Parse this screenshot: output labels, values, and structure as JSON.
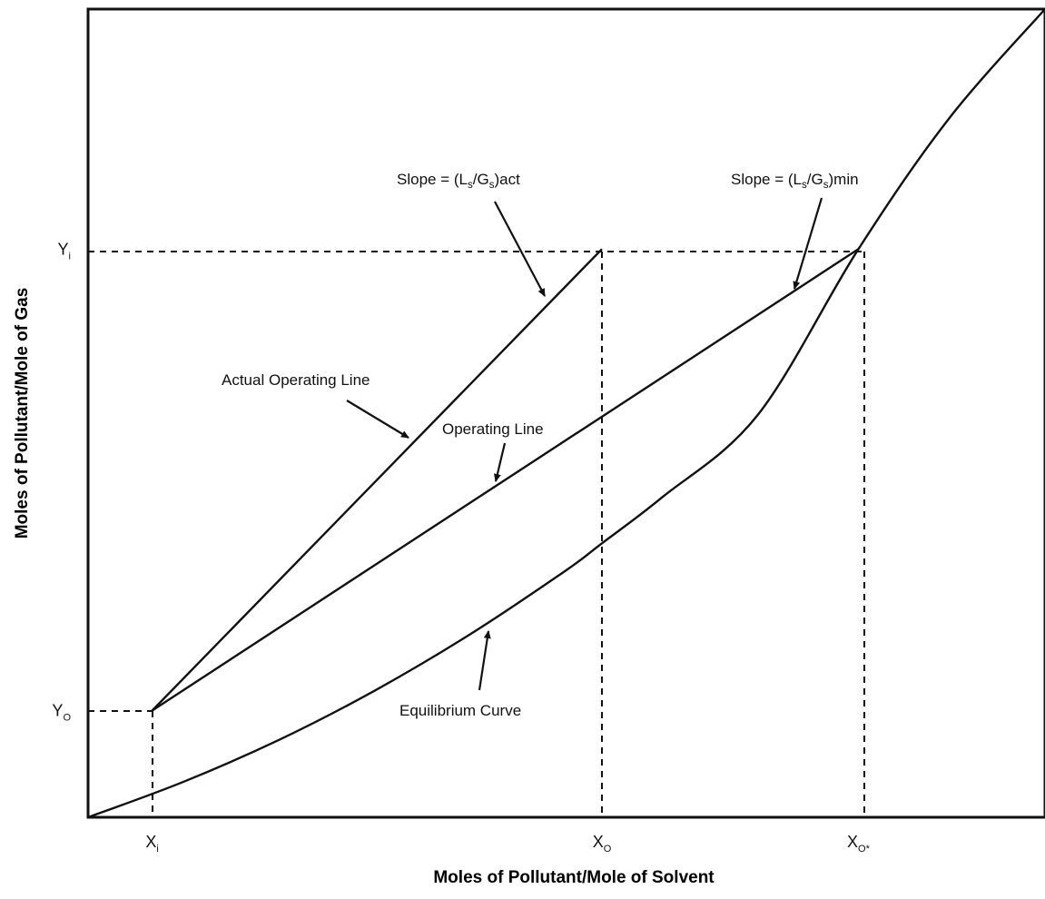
{
  "chart_data": {
    "type": "line",
    "title": "",
    "xlabel": "Moles of Pollutant/Mole of Solvent",
    "ylabel": "Moles of Pollutant/Mole of Gas",
    "xlim": [
      0,
      1
    ],
    "ylim": [
      0,
      1
    ],
    "grid": false,
    "x_ticks": [
      {
        "id": "xi",
        "main": "X",
        "sub": "i",
        "value": 0.067
      },
      {
        "id": "xo",
        "main": "X",
        "sub": "O",
        "value": 0.537
      },
      {
        "id": "xostar",
        "main": "X",
        "sub": "O*",
        "value": 0.805
      }
    ],
    "y_ticks": [
      {
        "id": "yo",
        "main": "Y",
        "sub": "O",
        "value": 0.132
      },
      {
        "id": "yi",
        "main": "Y",
        "sub": "i",
        "value": 0.703
      }
    ],
    "series": [
      {
        "id": "equilibrium",
        "name": "Equilibrium Curve",
        "x": [
          0,
          0.1,
          0.2,
          0.3,
          0.4,
          0.5,
          0.537,
          0.6,
          0.7,
          0.805,
          0.9,
          1.0
        ],
        "y": [
          0,
          0.044,
          0.096,
          0.157,
          0.227,
          0.306,
          0.339,
          0.396,
          0.498,
          0.703,
          0.865,
          1.0
        ]
      },
      {
        "id": "operating_min",
        "name": "Operating Line",
        "x": [
          0.067,
          0.805
        ],
        "y": [
          0.132,
          0.703
        ]
      },
      {
        "id": "operating_actual",
        "name": "Actual Operating Line",
        "x": [
          0.067,
          0.537
        ],
        "y": [
          0.132,
          0.703
        ]
      }
    ],
    "annotations": {
      "slope_act": {
        "prefix": "Slope = (L",
        "s1": "s",
        "mid": "/G",
        "s2": "s",
        "suffix": ")act"
      },
      "slope_min": {
        "prefix": "Slope = (L",
        "s1": "s",
        "mid": "/G",
        "s2": "s",
        "suffix": ")min"
      },
      "actual_operating_line": "Actual Operating Line",
      "operating_line": "Operating Line",
      "equilibrium_curve": "Equilibrium Curve"
    }
  }
}
